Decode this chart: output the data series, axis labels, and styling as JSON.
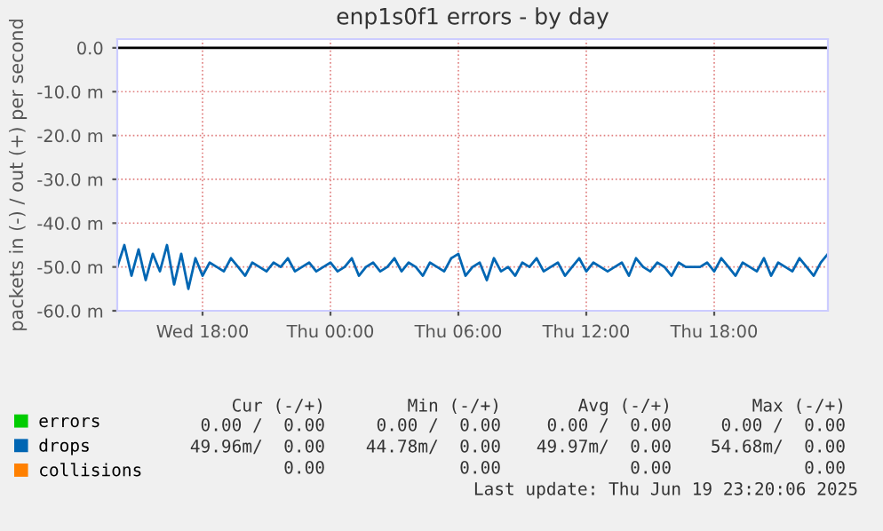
{
  "chart_data": {
    "type": "line",
    "title": "enp1s0f1 errors - by day",
    "ylabel": "packets in (-) / out (+) per second",
    "x": [
      "2025-06-18T14:00",
      "2025-06-18T14:20",
      "2025-06-18T14:40",
      "2025-06-18T15:00",
      "2025-06-18T15:20",
      "2025-06-18T15:40",
      "2025-06-18T16:00",
      "2025-06-18T16:20",
      "2025-06-18T16:40",
      "2025-06-18T17:00",
      "2025-06-18T17:20",
      "2025-06-18T17:40",
      "2025-06-18T18:00",
      "2025-06-18T18:20",
      "2025-06-18T18:40",
      "2025-06-18T19:00",
      "2025-06-18T19:20",
      "2025-06-18T19:40",
      "2025-06-18T20:00",
      "2025-06-18T20:20",
      "2025-06-18T20:40",
      "2025-06-18T21:00",
      "2025-06-18T21:20",
      "2025-06-18T21:40",
      "2025-06-18T22:00",
      "2025-06-18T22:20",
      "2025-06-18T22:40",
      "2025-06-18T23:00",
      "2025-06-18T23:20",
      "2025-06-18T23:40",
      "2025-06-19T00:00",
      "2025-06-19T00:20",
      "2025-06-19T00:40",
      "2025-06-19T01:00",
      "2025-06-19T01:20",
      "2025-06-19T01:40",
      "2025-06-19T02:00",
      "2025-06-19T02:20",
      "2025-06-19T02:40",
      "2025-06-19T03:00",
      "2025-06-19T03:20",
      "2025-06-19T03:40",
      "2025-06-19T04:00",
      "2025-06-19T04:20",
      "2025-06-19T04:40",
      "2025-06-19T05:00",
      "2025-06-19T05:20",
      "2025-06-19T05:40",
      "2025-06-19T06:00",
      "2025-06-19T06:20",
      "2025-06-19T06:40",
      "2025-06-19T07:00",
      "2025-06-19T07:20",
      "2025-06-19T07:40",
      "2025-06-19T08:00",
      "2025-06-19T08:20",
      "2025-06-19T08:40",
      "2025-06-19T09:00",
      "2025-06-19T09:20",
      "2025-06-19T09:40",
      "2025-06-19T10:00",
      "2025-06-19T10:20",
      "2025-06-19T10:40",
      "2025-06-19T11:00",
      "2025-06-19T11:20",
      "2025-06-19T11:40",
      "2025-06-19T12:00",
      "2025-06-19T12:20",
      "2025-06-19T12:40",
      "2025-06-19T13:00",
      "2025-06-19T13:20",
      "2025-06-19T13:40",
      "2025-06-19T14:00",
      "2025-06-19T14:20",
      "2025-06-19T14:40",
      "2025-06-19T15:00",
      "2025-06-19T15:20",
      "2025-06-19T15:40",
      "2025-06-19T16:00",
      "2025-06-19T16:20",
      "2025-06-19T16:40",
      "2025-06-19T17:00",
      "2025-06-19T17:20",
      "2025-06-19T17:40",
      "2025-06-19T18:00",
      "2025-06-19T18:20",
      "2025-06-19T18:40",
      "2025-06-19T19:00",
      "2025-06-19T19:20",
      "2025-06-19T19:40",
      "2025-06-19T20:00",
      "2025-06-19T20:20",
      "2025-06-19T20:40",
      "2025-06-19T21:00",
      "2025-06-19T21:20",
      "2025-06-19T21:40",
      "2025-06-19T22:00",
      "2025-06-19T22:20",
      "2025-06-19T22:40",
      "2025-06-19T23:00",
      "2025-06-19T23:20"
    ],
    "series": [
      {
        "name": "errors",
        "color": "#00cc00",
        "values": [
          null,
          null,
          null,
          null,
          null,
          null,
          null,
          null,
          null,
          null,
          null,
          null,
          null,
          null,
          null,
          null,
          null,
          null,
          null,
          null,
          null,
          null,
          null,
          null,
          null,
          null,
          null,
          null,
          null,
          null,
          null,
          null,
          null,
          null,
          null,
          null,
          null,
          null,
          null,
          null,
          null,
          null,
          null,
          null,
          null,
          null,
          null,
          null,
          null,
          null,
          null,
          null,
          null,
          null,
          null,
          null,
          null,
          null,
          null,
          null,
          null,
          null,
          null,
          null,
          null,
          null,
          null,
          null,
          null,
          null,
          null,
          null,
          null,
          null,
          null,
          null,
          null,
          null,
          null,
          null,
          null,
          null,
          null,
          null,
          null,
          null,
          null,
          null,
          null,
          null,
          null,
          null,
          null,
          null,
          null,
          null,
          null,
          null,
          null,
          null,
          null
        ]
      },
      {
        "name": "drops",
        "color": "#0066b3",
        "values": [
          -50,
          -45,
          -52,
          -46,
          -53,
          -47,
          -51,
          -45,
          -54,
          -47,
          -55,
          -48,
          -52,
          -49,
          -50,
          -51,
          -48,
          -50,
          -52,
          -49,
          -50,
          -51,
          -49,
          -50,
          -48,
          -51,
          -50,
          -49,
          -51,
          -50,
          -49,
          -51,
          -50,
          -48,
          -52,
          -50,
          -49,
          -51,
          -50,
          -48,
          -51,
          -49,
          -50,
          -52,
          -49,
          -50,
          -51,
          -48,
          -47,
          -52,
          -50,
          -49,
          -53,
          -48,
          -51,
          -50,
          -52,
          -49,
          -50,
          -48,
          -51,
          -50,
          -49,
          -52,
          -50,
          -48,
          -51,
          -49,
          -50,
          -51,
          -50,
          -49,
          -52,
          -48,
          -50,
          -51,
          -49,
          -50,
          -52,
          -49,
          -50,
          -50,
          -50,
          -49,
          -51,
          -48,
          -50,
          -52,
          -49,
          -50,
          -51,
          -48,
          -52,
          -49,
          -50,
          -51,
          -48,
          -50,
          -52,
          -49,
          -47
        ]
      },
      {
        "name": "collisions",
        "color": "#ff8000",
        "values": [
          null,
          null,
          null,
          null,
          null,
          null,
          null,
          null,
          null,
          null,
          null,
          null,
          null,
          null,
          null,
          null,
          null,
          null,
          null,
          null,
          null,
          null,
          null,
          null,
          null,
          null,
          null,
          null,
          null,
          null,
          null,
          null,
          null,
          null,
          null,
          null,
          null,
          null,
          null,
          null,
          null,
          null,
          null,
          null,
          null,
          null,
          null,
          null,
          null,
          null,
          null,
          null,
          null,
          null,
          null,
          null,
          null,
          null,
          null,
          null,
          null,
          null,
          null,
          null,
          null,
          null,
          null,
          null,
          null,
          null,
          null,
          null,
          null,
          null,
          null,
          null,
          null,
          null,
          null,
          null,
          null,
          null,
          null,
          null,
          null,
          null,
          null,
          null,
          null,
          null,
          null,
          null,
          null,
          null,
          null,
          null,
          null,
          null,
          null,
          null,
          null
        ]
      }
    ],
    "xlim": [
      "2025-06-18T14:00",
      "2025-06-19T23:20"
    ],
    "xticks": [
      {
        "value": "2025-06-18T18:00",
        "label": "Wed 18:00"
      },
      {
        "value": "2025-06-19T00:00",
        "label": "Thu 00:00"
      },
      {
        "value": "2025-06-19T06:00",
        "label": "Thu 06:00"
      },
      {
        "value": "2025-06-19T12:00",
        "label": "Thu 12:00"
      },
      {
        "value": "2025-06-19T18:00",
        "label": "Thu 18:00"
      }
    ],
    "ylim": [
      -60,
      2
    ],
    "yticks": [
      {
        "value": 0,
        "label": "0.0"
      },
      {
        "value": -10,
        "label": "-10.0 m"
      },
      {
        "value": -20,
        "label": "-20.0 m"
      },
      {
        "value": -30,
        "label": "-30.0 m"
      },
      {
        "value": -40,
        "label": "-40.0 m"
      },
      {
        "value": -50,
        "label": "-50.0 m"
      },
      {
        "value": -60,
        "label": "-60.0 m"
      }
    ],
    "ref_lines": [
      {
        "axis": "y",
        "value": 0,
        "color": "#000000"
      }
    ],
    "grid": true,
    "legend": "bottom left",
    "line_style": "solid",
    "annotations": [
      "Cur (-/+)",
      "Min (-/+)",
      "Avg (-/+)",
      "Max (-/+)",
      "0.00 /  0.00",
      "0.00 /  0.00",
      "0.00 /  0.00",
      "0.00 /  0.00",
      "49.96m/  0.00",
      "44.78m/  0.00",
      "49.97m/  0.00",
      "54.68m/  0.00",
      "0.00",
      "0.00",
      "0.00",
      "0.00",
      "Last update: Thu Jun 19 23:20:06 2025"
    ]
  }
}
